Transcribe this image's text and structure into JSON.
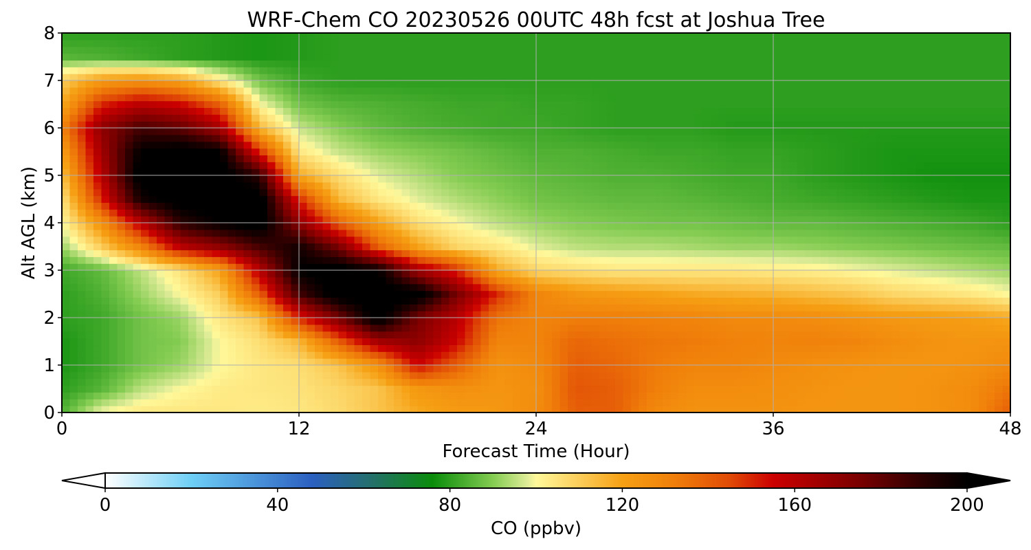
{
  "chart_data": {
    "type": "heatmap",
    "title": "WRF-Chem CO  20230526 00UTC 48h fcst at Joshua Tree",
    "xlabel": "Forecast Time (Hour)",
    "ylabel": "Alt AGL (km)",
    "xlim": [
      0,
      48
    ],
    "ylim": [
      0,
      8
    ],
    "x_ticks": [
      0,
      12,
      24,
      36,
      48
    ],
    "x_tick_labels": [
      "0",
      "12",
      "24",
      "36",
      "48"
    ],
    "y_ticks": [
      0,
      1,
      2,
      3,
      4,
      5,
      6,
      7,
      8
    ],
    "y_tick_labels": [
      "0",
      "1",
      "2",
      "3",
      "4",
      "5",
      "6",
      "7",
      "8"
    ],
    "grid": true,
    "x_hours": [
      0,
      2,
      4,
      6,
      8,
      10,
      12,
      14,
      16,
      18,
      20,
      22,
      24,
      26,
      28,
      30,
      32,
      34,
      36,
      38,
      40,
      42,
      44,
      46,
      48
    ],
    "y_km": [
      0,
      0.5,
      1,
      1.5,
      2,
      2.5,
      3,
      3.5,
      4,
      4.5,
      5,
      5.5,
      6,
      6.5,
      7,
      7.5,
      8
    ],
    "co_ppbv": [
      [
        84,
        100,
        104,
        104,
        104,
        103,
        104,
        107,
        112,
        118,
        122,
        123,
        127,
        140,
        140,
        128,
        125,
        125,
        125,
        124,
        124,
        124,
        125,
        127,
        140
      ],
      [
        80,
        85,
        95,
        100,
        103,
        104,
        105,
        108,
        112,
        123,
        126,
        124,
        126,
        142,
        140,
        132,
        127,
        127,
        126,
        125,
        124,
        124,
        125,
        127,
        135
      ],
      [
        78,
        82,
        88,
        92,
        100,
        104,
        106,
        112,
        125,
        155,
        140,
        125,
        128,
        140,
        138,
        133,
        130,
        130,
        128,
        126,
        125,
        124,
        124,
        125,
        128
      ],
      [
        78,
        82,
        88,
        90,
        100,
        106,
        115,
        140,
        165,
        170,
        155,
        130,
        130,
        138,
        136,
        134,
        133,
        131,
        130,
        131,
        130,
        127,
        125,
        124,
        125
      ],
      [
        80,
        82,
        88,
        92,
        104,
        112,
        150,
        175,
        205,
        175,
        160,
        135,
        130,
        132,
        132,
        131,
        130,
        128,
        128,
        127,
        125,
        123,
        122,
        121,
        118
      ],
      [
        80,
        84,
        92,
        100,
        110,
        140,
        185,
        205,
        205,
        205,
        175,
        150,
        130,
        124,
        122,
        120,
        118,
        117,
        116,
        114,
        112,
        108,
        106,
        104,
        100
      ],
      [
        82,
        86,
        95,
        105,
        120,
        160,
        200,
        205,
        200,
        165,
        150,
        118,
        108,
        106,
        104,
        104,
        104,
        104,
        103,
        102,
        100,
        98,
        96,
        94,
        92
      ],
      [
        92,
        110,
        130,
        160,
        170,
        185,
        195,
        175,
        140,
        120,
        108,
        104,
        98,
        95,
        94,
        94,
        93,
        92,
        92,
        91,
        90,
        89,
        88,
        87,
        86
      ],
      [
        100,
        125,
        160,
        190,
        200,
        205,
        170,
        140,
        120,
        106,
        100,
        95,
        92,
        90,
        89,
        88,
        88,
        87,
        86,
        86,
        85,
        84,
        83,
        82,
        80
      ],
      [
        104,
        150,
        195,
        205,
        205,
        205,
        150,
        115,
        104,
        98,
        94,
        91,
        88,
        87,
        86,
        86,
        85,
        84,
        83,
        82,
        81,
        80,
        79,
        78,
        78
      ],
      [
        112,
        160,
        205,
        205,
        205,
        190,
        118,
        106,
        98,
        94,
        90,
        88,
        86,
        85,
        84,
        84,
        83,
        82,
        82,
        80,
        79,
        78,
        77,
        77,
        77
      ],
      [
        120,
        165,
        200,
        205,
        200,
        150,
        104,
        96,
        92,
        90,
        88,
        86,
        84,
        84,
        83,
        82,
        82,
        81,
        81,
        80,
        79,
        78,
        78,
        78,
        78
      ],
      [
        130,
        170,
        185,
        180,
        165,
        115,
        96,
        90,
        86,
        84,
        83,
        82,
        82,
        81,
        80,
        80,
        80,
        79,
        79,
        79,
        79,
        79,
        79,
        79,
        79
      ],
      [
        118,
        150,
        160,
        155,
        140,
        100,
        88,
        85,
        84,
        83,
        82,
        82,
        81,
        81,
        80,
        80,
        80,
        80,
        80,
        80,
        80,
        80,
        80,
        80,
        80
      ],
      [
        110,
        122,
        125,
        120,
        104,
        88,
        82,
        80,
        80,
        80,
        80,
        80,
        80,
        80,
        80,
        80,
        80,
        80,
        80,
        80,
        80,
        80,
        80,
        80,
        80
      ],
      [
        85,
        84,
        82,
        80,
        79,
        78,
        79,
        80,
        80,
        80,
        80,
        80,
        80,
        80,
        80,
        80,
        80,
        80,
        80,
        80,
        80,
        80,
        80,
        80,
        80
      ],
      [
        80,
        80,
        80,
        80,
        79,
        78,
        79,
        80,
        80,
        80,
        80,
        80,
        80,
        80,
        80,
        80,
        80,
        80,
        80,
        80,
        80,
        80,
        80,
        80,
        80
      ]
    ],
    "colorbar": {
      "label": "CO  (ppbv)",
      "min": 0,
      "max": 200,
      "extend": "both",
      "ticks": [
        0,
        40,
        80,
        120,
        160,
        200
      ],
      "tick_labels": [
        "0",
        "40",
        "80",
        "120",
        "160",
        "200"
      ],
      "color_stops": [
        {
          "v": 0,
          "c": "#ffffff"
        },
        {
          "v": 20,
          "c": "#6ecff6"
        },
        {
          "v": 48,
          "c": "#2b5fc0"
        },
        {
          "v": 62,
          "c": "#24706a"
        },
        {
          "v": 76,
          "c": "#0a8c0a"
        },
        {
          "v": 90,
          "c": "#84cc52"
        },
        {
          "v": 98,
          "c": "#dfec98"
        },
        {
          "v": 100,
          "c": "#fff89a"
        },
        {
          "v": 110,
          "c": "#fbcd5a"
        },
        {
          "v": 120,
          "c": "#f6a014"
        },
        {
          "v": 132,
          "c": "#f07f0a"
        },
        {
          "v": 145,
          "c": "#e04a06"
        },
        {
          "v": 155,
          "c": "#cc0000"
        },
        {
          "v": 175,
          "c": "#7a0000"
        },
        {
          "v": 190,
          "c": "#2a0000"
        },
        {
          "v": 200,
          "c": "#000000"
        }
      ]
    }
  }
}
